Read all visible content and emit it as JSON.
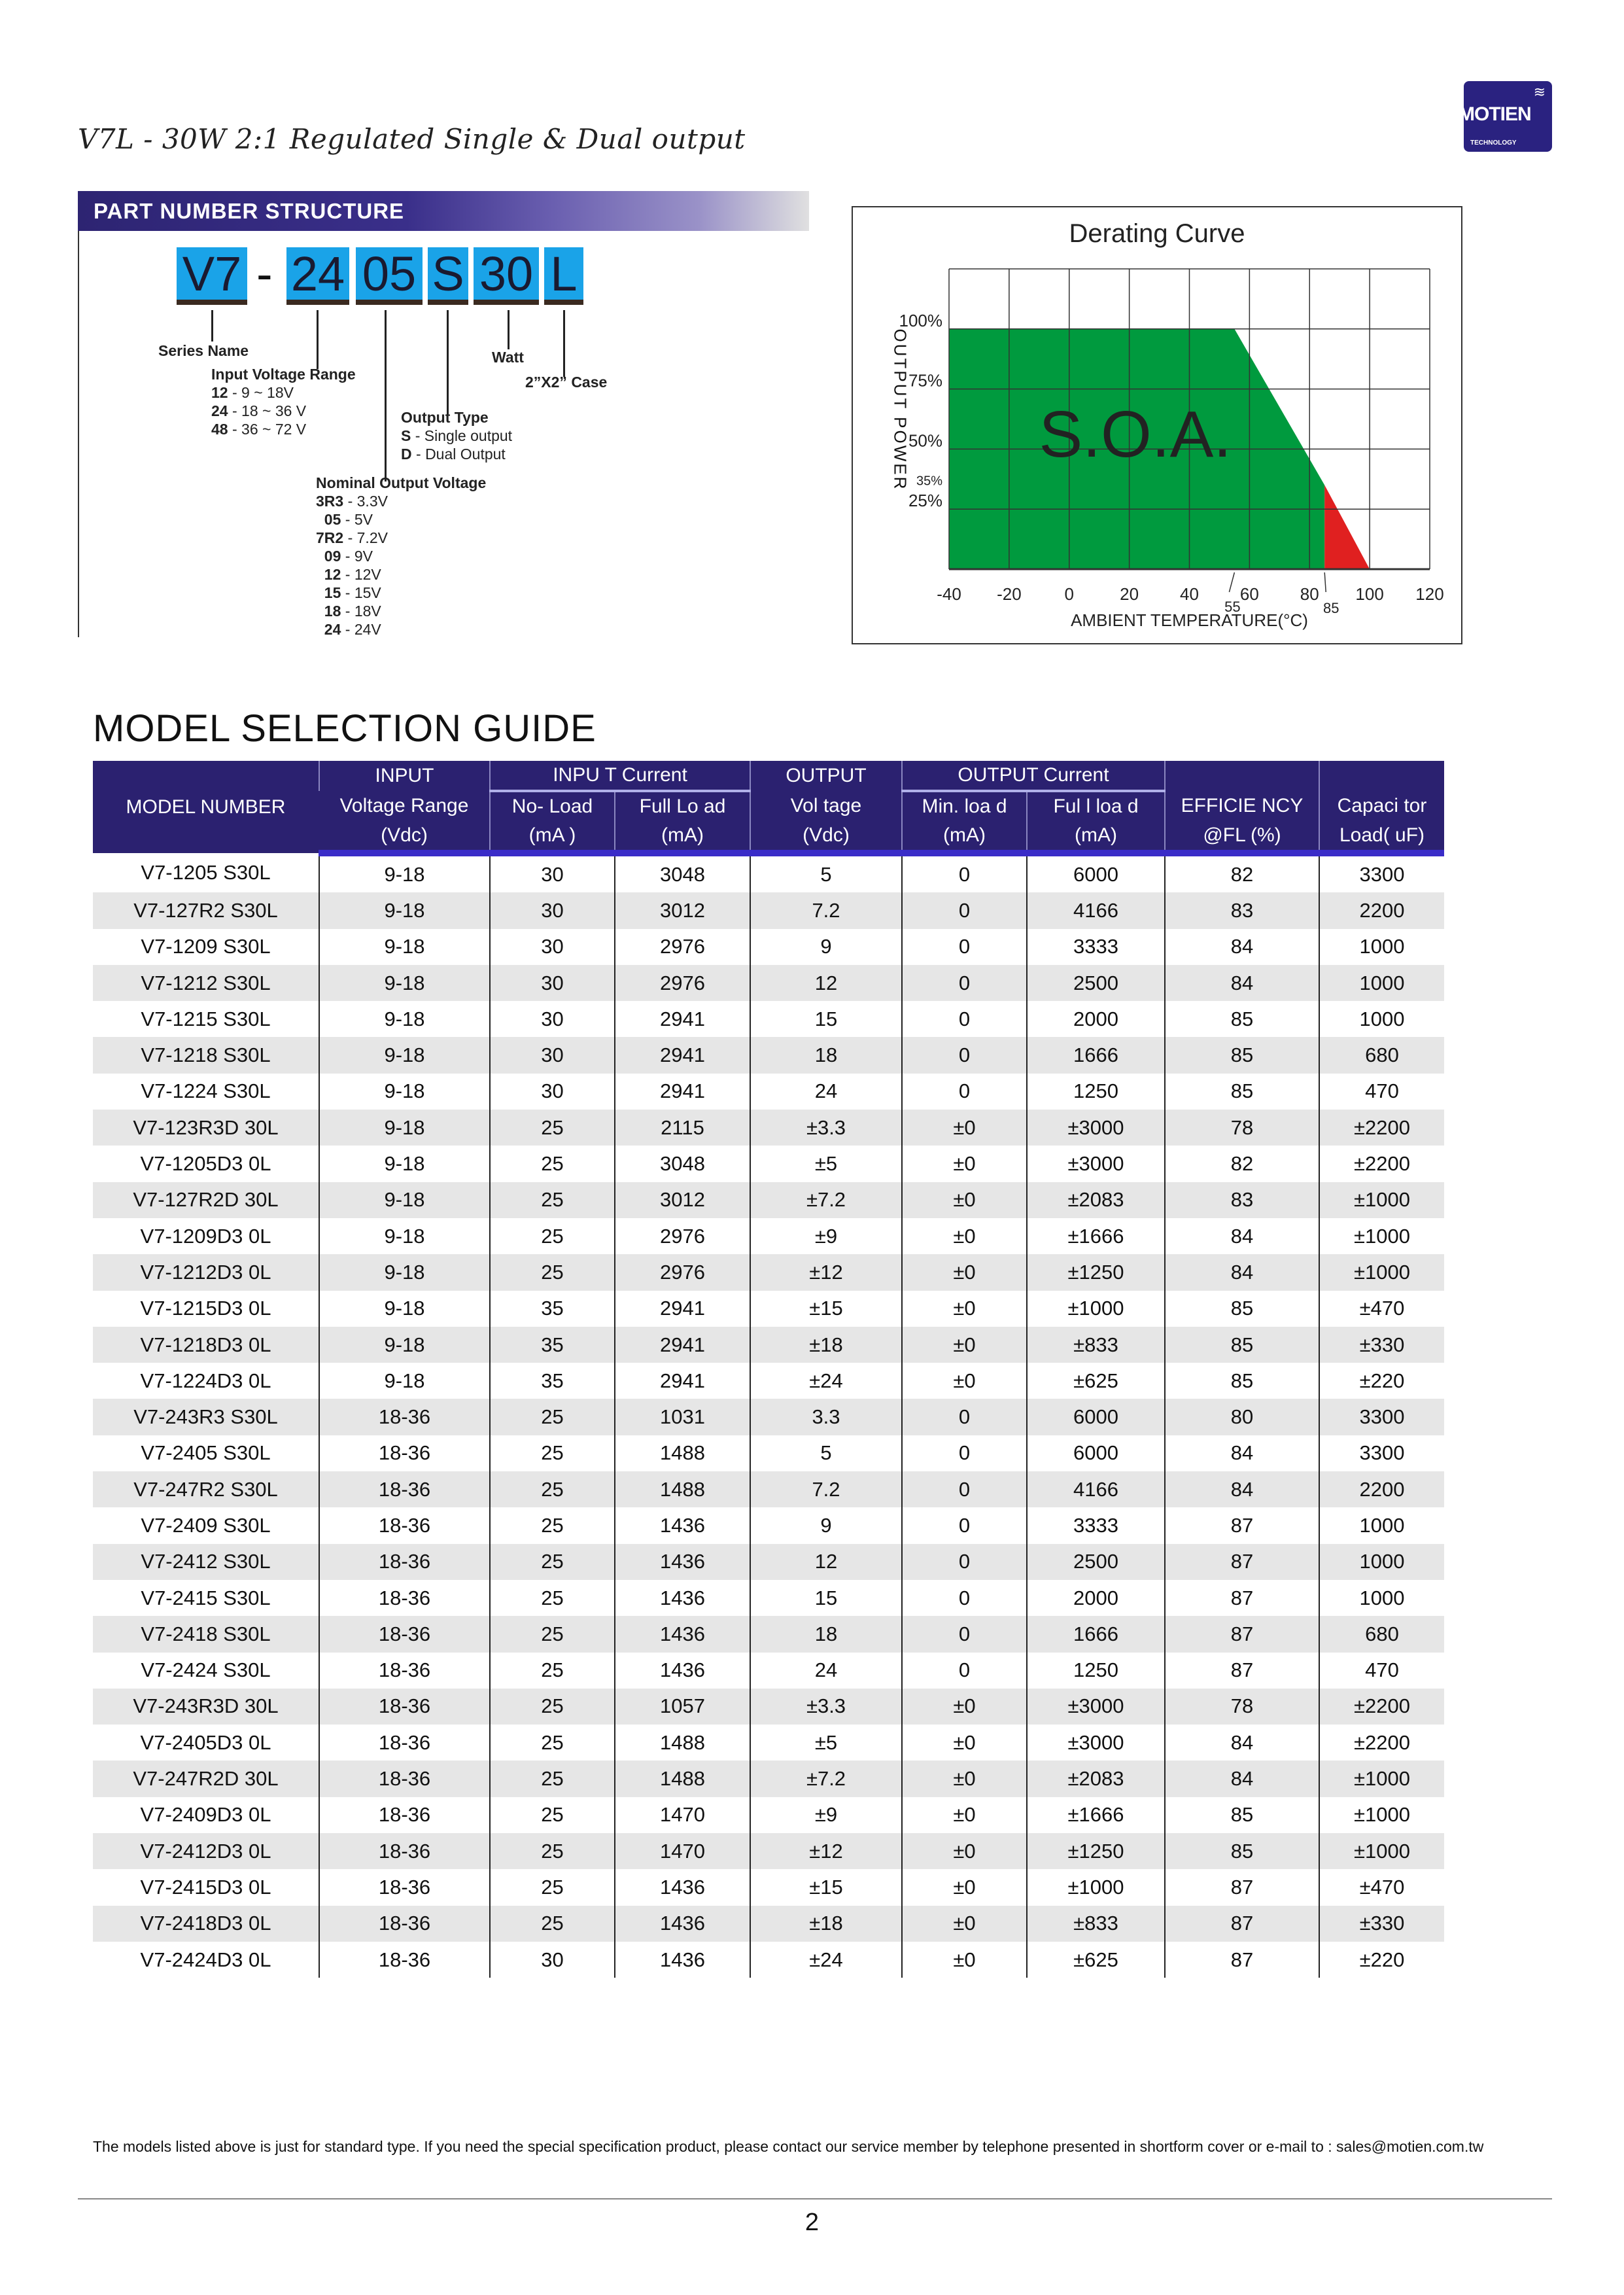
{
  "header": {
    "title": "V7L - 30W 2:1 Regulated Single & Dual output",
    "logo_text": "MOTIEN",
    "logo_sub": "TECHNOLOGY"
  },
  "part_number": {
    "section_title": "PART NUMBER STRUCTURE",
    "segments": [
      "V7",
      "-",
      "24",
      "05",
      "S",
      "30",
      "L"
    ],
    "series_name": "Series Name",
    "input_range_title": "Input Voltage Range",
    "input_ranges": [
      {
        "code": "12",
        "desc": " - 9 ~ 18V"
      },
      {
        "code": "24",
        "desc": " - 18 ~ 36 V"
      },
      {
        "code": "48",
        "desc": " - 36 ~ 72 V"
      }
    ],
    "output_type_title": "Output Type",
    "output_types": [
      {
        "code": "S",
        "desc": " - Single output"
      },
      {
        "code": "D",
        "desc": " - Dual Output"
      }
    ],
    "nominal_title": "Nominal Output Voltage",
    "nominal": [
      {
        "code": "3R3",
        "desc": " - 3.3V"
      },
      {
        "code": "05",
        "desc": " - 5V"
      },
      {
        "code": "7R2",
        "desc": " - 7.2V"
      },
      {
        "code": "09",
        "desc": " - 9V"
      },
      {
        "code": "12",
        "desc": " - 12V"
      },
      {
        "code": "15",
        "desc": " - 15V"
      },
      {
        "code": "18",
        "desc": " - 18V"
      },
      {
        "code": "24",
        "desc": " - 24V"
      }
    ],
    "watt": "Watt",
    "case": "2”X2” Case"
  },
  "chart_data": {
    "type": "area",
    "title": "Derating Curve",
    "xlabel": "AMBIENT TEMPERATURE(°C)",
    "ylabel": "OUTPUT POWER",
    "xlim": [
      -40,
      120
    ],
    "ylim": [
      0,
      125
    ],
    "x_ticks": [
      "-40",
      "-20",
      "0",
      "20",
      "40",
      "60",
      "80",
      "100",
      "120"
    ],
    "x_annotations": [
      "55",
      "85"
    ],
    "y_ticks": [
      "100%",
      "75%",
      "50%",
      "35%",
      "25%"
    ],
    "grid": true,
    "soa_label": "S.O.A.",
    "series": [
      {
        "name": "S.O.A.",
        "color": "#009a3e",
        "points": [
          [
            -40,
            0
          ],
          [
            -40,
            100
          ],
          [
            55,
            100
          ],
          [
            85,
            35
          ],
          [
            85,
            0
          ]
        ]
      },
      {
        "color": "#e02020",
        "points": [
          [
            85,
            0
          ],
          [
            85,
            35
          ],
          [
            100,
            0
          ]
        ]
      }
    ]
  },
  "table": {
    "title": "MODEL SELECTION GUIDE",
    "header_top": [
      "MODEL NUMBER",
      "INPUT",
      "INPU T Current",
      "OUTPUT",
      "OUTPUT Current",
      "EFFICIE NCY",
      "Capaci tor"
    ],
    "header_sub": [
      "Voltage Range",
      "No- Load",
      "Full Lo ad",
      "Vol tage",
      "Min. loa d",
      "Ful l loa d",
      "EFFICIE NCY",
      "Capaci tor"
    ],
    "header_units": [
      "(Vdc)",
      "(mA )",
      "(mA)",
      "(Vdc)",
      "(mA)",
      "(mA)",
      "@FL (%)",
      "Load( uF)"
    ],
    "rows": [
      [
        "V7-1205 S30L",
        "9-18",
        "30",
        "3048",
        "5",
        "0",
        "6000",
        "82",
        "3300"
      ],
      [
        "V7-127R2 S30L",
        "9-18",
        "30",
        "3012",
        "7.2",
        "0",
        "4166",
        "83",
        "2200"
      ],
      [
        "V7-1209 S30L",
        "9-18",
        "30",
        "2976",
        "9",
        "0",
        "3333",
        "84",
        "1000"
      ],
      [
        "V7-1212 S30L",
        "9-18",
        "30",
        "2976",
        "12",
        "0",
        "2500",
        "84",
        "1000"
      ],
      [
        "V7-1215 S30L",
        "9-18",
        "30",
        "2941",
        "15",
        "0",
        "2000",
        "85",
        "1000"
      ],
      [
        "V7-1218 S30L",
        "9-18",
        "30",
        "2941",
        "18",
        "0",
        "1666",
        "85",
        "680"
      ],
      [
        "V7-1224 S30L",
        "9-18",
        "30",
        "2941",
        "24",
        "0",
        "1250",
        "85",
        "470"
      ],
      [
        "V7-123R3D 30L",
        "9-18",
        "25",
        "2115",
        "±3.3",
        "±0",
        "±3000",
        "78",
        "±2200"
      ],
      [
        "V7-1205D3 0L",
        "9-18",
        "25",
        "3048",
        "±5",
        "±0",
        "±3000",
        "82",
        "±2200"
      ],
      [
        "V7-127R2D 30L",
        "9-18",
        "25",
        "3012",
        "±7.2",
        "±0",
        "±2083",
        "83",
        "±1000"
      ],
      [
        "V7-1209D3 0L",
        "9-18",
        "25",
        "2976",
        "±9",
        "±0",
        "±1666",
        "84",
        "±1000"
      ],
      [
        "V7-1212D3 0L",
        "9-18",
        "25",
        "2976",
        "±12",
        "±0",
        "±1250",
        "84",
        "±1000"
      ],
      [
        "V7-1215D3 0L",
        "9-18",
        "35",
        "2941",
        "±15",
        "±0",
        "±1000",
        "85",
        "±470"
      ],
      [
        "V7-1218D3 0L",
        "9-18",
        "35",
        "2941",
        "±18",
        "±0",
        "±833",
        "85",
        "±330"
      ],
      [
        "V7-1224D3 0L",
        "9-18",
        "35",
        "2941",
        "±24",
        "±0",
        "±625",
        "85",
        "±220"
      ],
      [
        "V7-243R3 S30L",
        "18-36",
        "25",
        "1031",
        "3.3",
        "0",
        "6000",
        "80",
        "3300"
      ],
      [
        "V7-2405 S30L",
        "18-36",
        "25",
        "1488",
        "5",
        "0",
        "6000",
        "84",
        "3300"
      ],
      [
        "V7-247R2 S30L",
        "18-36",
        "25",
        "1488",
        "7.2",
        "0",
        "4166",
        "84",
        "2200"
      ],
      [
        "V7-2409 S30L",
        "18-36",
        "25",
        "1436",
        "9",
        "0",
        "3333",
        "87",
        "1000"
      ],
      [
        "V7-2412 S30L",
        "18-36",
        "25",
        "1436",
        "12",
        "0",
        "2500",
        "87",
        "1000"
      ],
      [
        "V7-2415 S30L",
        "18-36",
        "25",
        "1436",
        "15",
        "0",
        "2000",
        "87",
        "1000"
      ],
      [
        "V7-2418 S30L",
        "18-36",
        "25",
        "1436",
        "18",
        "0",
        "1666",
        "87",
        "680"
      ],
      [
        "V7-2424 S30L",
        "18-36",
        "25",
        "1436",
        "24",
        "0",
        "1250",
        "87",
        "470"
      ],
      [
        "V7-243R3D 30L",
        "18-36",
        "25",
        "1057",
        "±3.3",
        "±0",
        "±3000",
        "78",
        "±2200"
      ],
      [
        "V7-2405D3 0L",
        "18-36",
        "25",
        "1488",
        "±5",
        "±0",
        "±3000",
        "84",
        "±2200"
      ],
      [
        "V7-247R2D 30L",
        "18-36",
        "25",
        "1488",
        "±7.2",
        "±0",
        "±2083",
        "84",
        "±1000"
      ],
      [
        "V7-2409D3 0L",
        "18-36",
        "25",
        "1470",
        "±9",
        "±0",
        "±1666",
        "85",
        "±1000"
      ],
      [
        "V7-2412D3 0L",
        "18-36",
        "25",
        "1470",
        "±12",
        "±0",
        "±1250",
        "85",
        "±1000"
      ],
      [
        "V7-2415D3 0L",
        "18-36",
        "25",
        "1436",
        "±15",
        "±0",
        "±1000",
        "87",
        "±470"
      ],
      [
        "V7-2418D3 0L",
        "18-36",
        "25",
        "1436",
        "±18",
        "±0",
        "±833",
        "87",
        "±330"
      ],
      [
        "V7-2424D3 0L",
        "18-36",
        "30",
        "1436",
        "±24",
        "±0",
        "±625",
        "87",
        "±220"
      ]
    ]
  },
  "footer": {
    "note": "The models listed above is just for standard type. If you need the special specification product, please contact our service member by telephone presented in shortform cover or e-mail to : sales@motien.com.tw",
    "page": "2"
  }
}
